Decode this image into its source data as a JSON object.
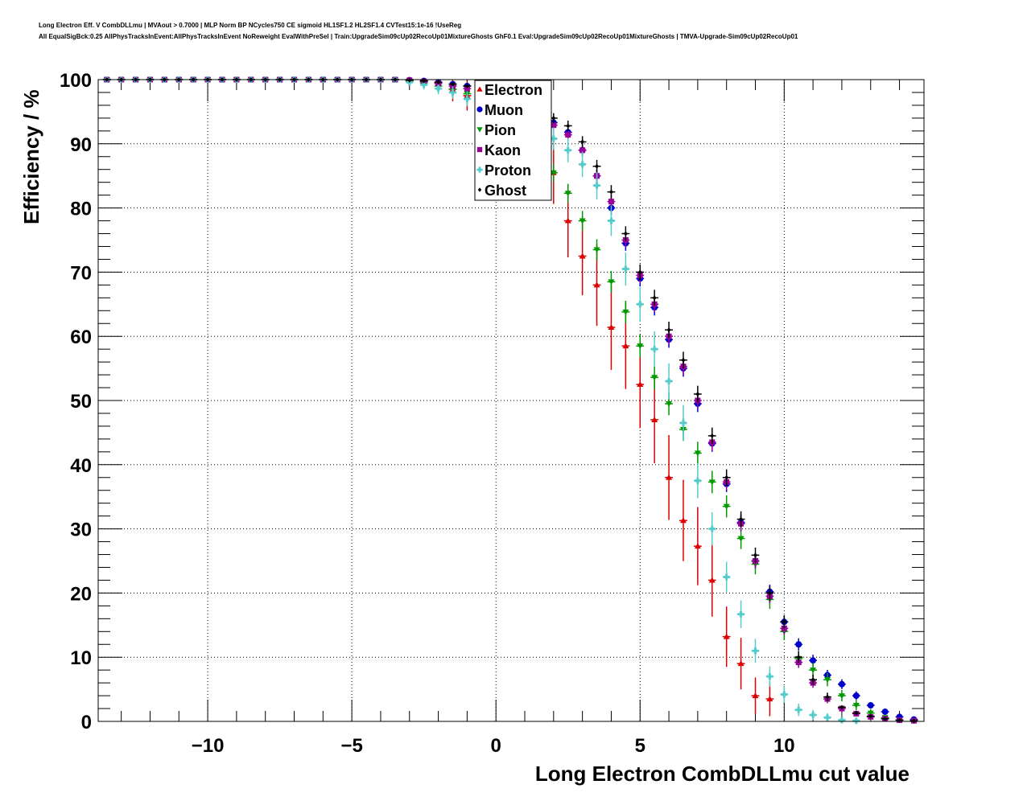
{
  "chart_data": {
    "type": "scatter",
    "title_lines": [
      "Long Electron Eff. V CombDLLmu | MVAout > 0.7000 | MLP Norm BP NCycles750 CE sigmoid HL1SF1.2 HL2SF1.4 CVTest15:1e-16 !UseReg",
      "All EqualSigBck:0.25 AllPhysTracksInEvent:AllPhysTracksInEvent NoReweight EvalWithPreSel | Train:UpgradeSim09cUp02RecoUp01MixtureGhosts GhF0.1 Eval:UpgradeSim09cUp02RecoUp01MixtureGhosts | TMVA-Upgrade-Sim09cUp02RecoUp01"
    ],
    "xlabel": "Long Electron CombDLLmu cut value",
    "ylabel": "Efficiency / %",
    "xlim": [
      -13.8,
      14.85
    ],
    "ylim": [
      0,
      100
    ],
    "xticks": [
      -10,
      -5,
      0,
      5,
      10
    ],
    "xtick_labels": [
      "−10",
      "−5",
      "0",
      "5",
      "10"
    ],
    "yticks": [
      0,
      10,
      20,
      30,
      40,
      50,
      60,
      70,
      80,
      90,
      100
    ],
    "ytick_labels": [
      "0",
      "10",
      "20",
      "30",
      "40",
      "50",
      "60",
      "70",
      "80",
      "90",
      "100"
    ],
    "grid": true,
    "legend_position": "top-center",
    "x": [
      -13.5,
      -13,
      -12.5,
      -12,
      -11.5,
      -11,
      -10.5,
      -10,
      -9.5,
      -9,
      -8.5,
      -8,
      -7.5,
      -7,
      -6.5,
      -6,
      -5.5,
      -5,
      -4.5,
      -4,
      -3.5,
      -3,
      -2.5,
      -2,
      -1.5,
      -1,
      -0.5,
      0,
      0.5,
      1,
      1.5,
      2,
      2.5,
      3,
      3.5,
      4,
      4.5,
      5,
      5.5,
      6,
      6.5,
      7,
      7.5,
      8,
      8.5,
      9,
      9.5,
      10,
      10.5,
      11,
      11.5,
      12,
      12.5,
      13,
      13.5,
      14,
      14.5
    ],
    "series": [
      {
        "name": "Electron",
        "color": "#dd0000",
        "marker": "triangle-up",
        "error_scale": 0.13,
        "values": [
          100,
          100,
          100,
          100,
          100,
          100,
          100,
          100,
          100,
          100,
          100,
          100,
          100,
          100,
          100,
          100,
          100,
          100,
          100,
          100,
          100,
          100,
          99.8,
          99.5,
          98.5,
          97.5,
          96,
          94.5,
          92.5,
          90.5,
          88.5,
          85.5,
          78,
          72.5,
          68,
          61.4,
          58.5,
          52.5,
          47,
          38,
          31.3,
          27.3,
          22,
          13.2,
          9,
          4,
          3.5,
          null,
          null,
          null,
          null,
          null,
          null,
          null,
          null,
          null,
          null
        ]
      },
      {
        "name": "Muon",
        "color": "#0000cc",
        "marker": "circle",
        "error_scale": 0.02,
        "values": [
          100,
          100,
          100,
          100,
          100,
          100,
          100,
          100,
          100,
          100,
          100,
          100,
          100,
          100,
          100,
          100,
          100,
          100,
          100,
          100,
          100,
          99.9,
          99.8,
          99.6,
          99.3,
          99,
          98.4,
          97.6,
          96.7,
          95.8,
          94.7,
          93.3,
          91.8,
          89,
          85,
          80,
          74.5,
          69,
          64.5,
          59.5,
          55,
          49.5,
          43.3,
          37,
          31,
          25,
          20.2,
          15.5,
          12,
          9.5,
          7.2,
          5.8,
          4,
          2.5,
          1.5,
          0.7,
          0.3
        ]
      },
      {
        "name": "Pion",
        "color": "#009900",
        "marker": "triangle-down",
        "error_scale": 0.03,
        "values": [
          100,
          100,
          100,
          100,
          100,
          100,
          100,
          100,
          100,
          100,
          100,
          100,
          100,
          100,
          100,
          100,
          100,
          100,
          100,
          100,
          100,
          99.8,
          99.5,
          99,
          98.5,
          97.8,
          96.5,
          95,
          93,
          90.5,
          88,
          85.5,
          82.3,
          78,
          73.5,
          68.5,
          63.8,
          58.5,
          53.6,
          49.5,
          45.5,
          41.8,
          37.3,
          33.5,
          28.5,
          24.5,
          19,
          14,
          9.8,
          8,
          6.5,
          4,
          2.5,
          1.3,
          0.6,
          0.2,
          0.1
        ]
      },
      {
        "name": "Kaon",
        "color": "#990099",
        "marker": "square",
        "error_scale": 0.02,
        "values": [
          100,
          100,
          100,
          100,
          100,
          100,
          100,
          100,
          100,
          100,
          100,
          100,
          100,
          100,
          100,
          100,
          100,
          100,
          100,
          100,
          100,
          99.9,
          99.7,
          99.4,
          99,
          98.6,
          98,
          97.2,
          96.3,
          95.4,
          94.3,
          92.9,
          91.4,
          89,
          85,
          81,
          75,
          69.5,
          65,
          60,
          55.3,
          50,
          43.5,
          37.3,
          30.8,
          25,
          19.5,
          14.5,
          9.2,
          6,
          3.5,
          2,
          1.2,
          0.7,
          0.4,
          0.2,
          0.1
        ]
      },
      {
        "name": "Proton",
        "color": "#55cccc",
        "marker": "cross",
        "error_scale": 0.05,
        "values": [
          100,
          100,
          100,
          100,
          100,
          100,
          100,
          100,
          100,
          100,
          100,
          100,
          100,
          100,
          100,
          100,
          100,
          100,
          100,
          100,
          100,
          99.6,
          99.2,
          98.6,
          98,
          97,
          96,
          95,
          94,
          93,
          92,
          90.8,
          89,
          86.8,
          83.5,
          78,
          70.5,
          65,
          58,
          53,
          46.5,
          37.5,
          30,
          22.5,
          16.7,
          11,
          7,
          4.2,
          1.8,
          1,
          0.6,
          0.2,
          0.1,
          null,
          null,
          null,
          null
        ]
      },
      {
        "name": "Ghost",
        "color": "#000000",
        "marker": "diamond",
        "error_scale": 0.02,
        "values": [
          100,
          100,
          100,
          100,
          100,
          100,
          100,
          100,
          100,
          100,
          100,
          100,
          100,
          100,
          100,
          100,
          100,
          100,
          100,
          100,
          100,
          99.9,
          99.8,
          99.6,
          99.3,
          99,
          98.5,
          97.8,
          97,
          96.2,
          95.2,
          94,
          92.8,
          90.3,
          86.5,
          82.5,
          76,
          70,
          66,
          61,
          56.3,
          51,
          44.5,
          38,
          31.5,
          25.9,
          20,
          15.5,
          10,
          6.5,
          3.8,
          2.2,
          1.3,
          0.8,
          0.4,
          0.2,
          0.1
        ]
      }
    ]
  }
}
